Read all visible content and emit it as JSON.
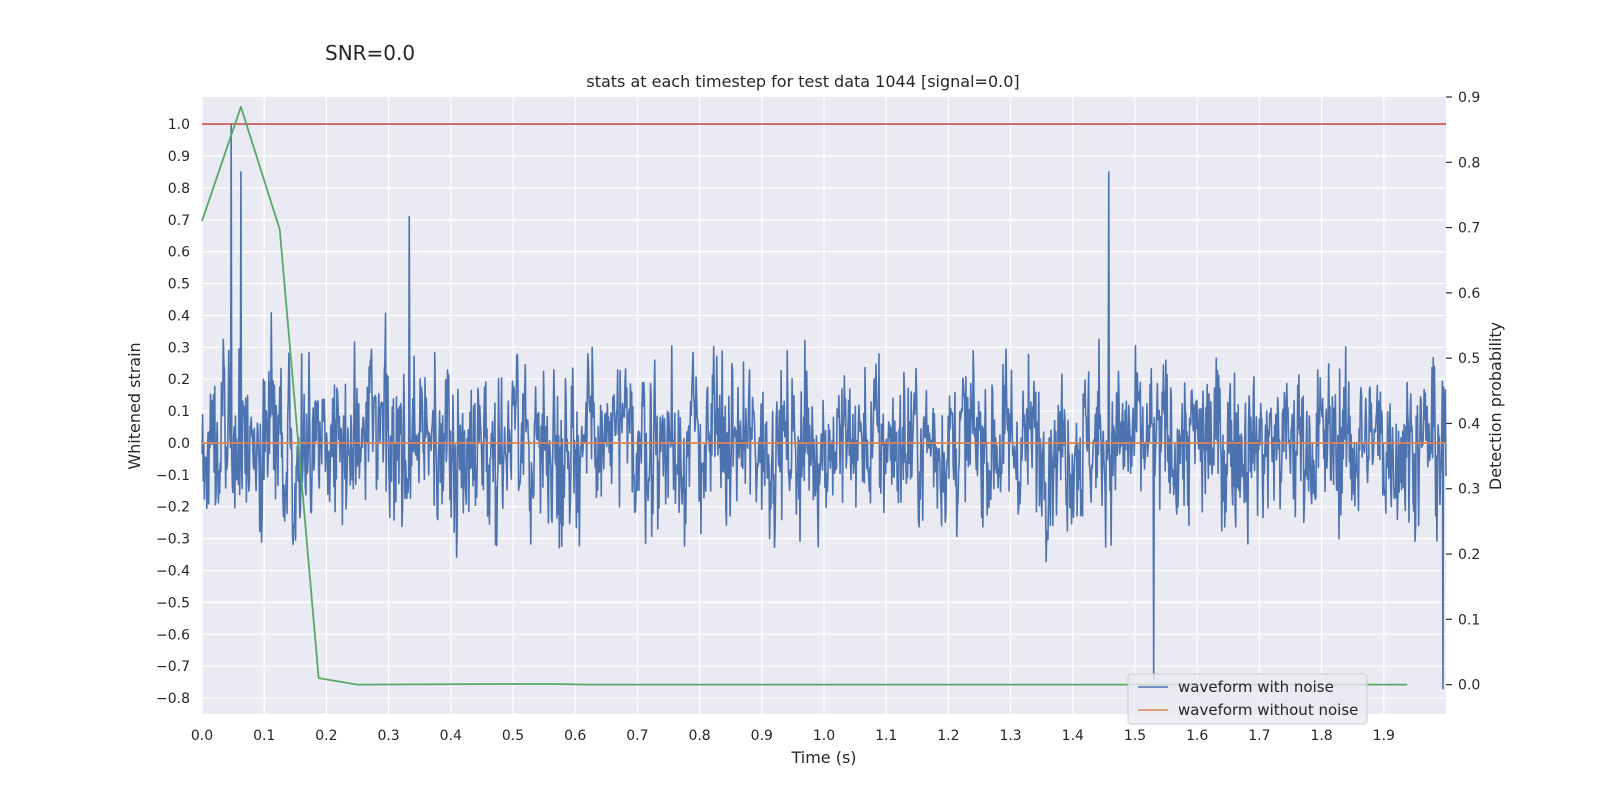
{
  "figure": {
    "suptitle": "SNR=0.0"
  },
  "colors": {
    "background": "#ffffff",
    "plot_background": "#eaeaf2",
    "grid": "#ffffff",
    "noisy": "#4c72b0",
    "clean": "#dd8452",
    "probability": "#55a868",
    "threshold": "#c44e52",
    "text": "#262626"
  },
  "chart_data": {
    "type": "line",
    "title": "stats at each timestep for test data 1044 [signal=0.0]",
    "xlabel": "Time (s)",
    "ylabel": "Whitened strain",
    "y2label": "Detection probability",
    "xlim": [
      0.0,
      2.0
    ],
    "ylim": [
      -0.85,
      1.085
    ],
    "y2lim": [
      -0.045,
      0.9
    ],
    "xticks": [
      "0.0",
      "0.1",
      "0.2",
      "0.3",
      "0.4",
      "0.5",
      "0.6",
      "0.7",
      "0.8",
      "0.9",
      "1.0",
      "1.1",
      "1.2",
      "1.3",
      "1.4",
      "1.5",
      "1.6",
      "1.7",
      "1.8",
      "1.9"
    ],
    "yticks": [
      "1.0",
      "0.9",
      "0.8",
      "0.7",
      "0.6",
      "0.5",
      "0.4",
      "0.3",
      "0.2",
      "0.1",
      "0.0",
      "−0.1",
      "−0.2",
      "−0.3",
      "−0.4",
      "−0.5",
      "−0.6",
      "−0.7",
      "−0.8"
    ],
    "y2ticks": [
      "0.9",
      "0.8",
      "0.7",
      "0.6",
      "0.5",
      "0.4",
      "0.3",
      "0.2",
      "0.1",
      "0.0"
    ],
    "grid": true,
    "legend_position": "lower-right",
    "threshold": {
      "axis": "y",
      "value": 1.0
    },
    "series": [
      {
        "name": "waveform with noise",
        "axis": "y",
        "noise_like": true,
        "samples": 2048,
        "x_range": [
          0.0,
          2.0
        ],
        "std": 0.26,
        "min": -0.8,
        "max": 1.0,
        "notable_peaks": [
          [
            0.047,
            1.0
          ],
          [
            0.063,
            0.85
          ],
          [
            0.333,
            0.71
          ],
          [
            1.458,
            0.85
          ],
          [
            1.53,
            -0.74
          ],
          [
            1.995,
            -0.77
          ]
        ]
      },
      {
        "name": "waveform without noise",
        "axis": "y",
        "x": [
          0.0,
          2.0
        ],
        "y": [
          0.0,
          0.0
        ]
      },
      {
        "name": "detection probability",
        "axis": "y2",
        "x": [
          0.0,
          0.0625,
          0.125,
          0.1875,
          0.25,
          0.5,
          0.5625,
          0.625,
          1.0,
          1.5,
          1.9375
        ],
        "y": [
          0.71,
          0.885,
          0.697,
          0.01,
          0.0,
          0.001,
          0.001,
          0.0,
          0.0,
          0.0,
          0.0
        ]
      }
    ]
  }
}
